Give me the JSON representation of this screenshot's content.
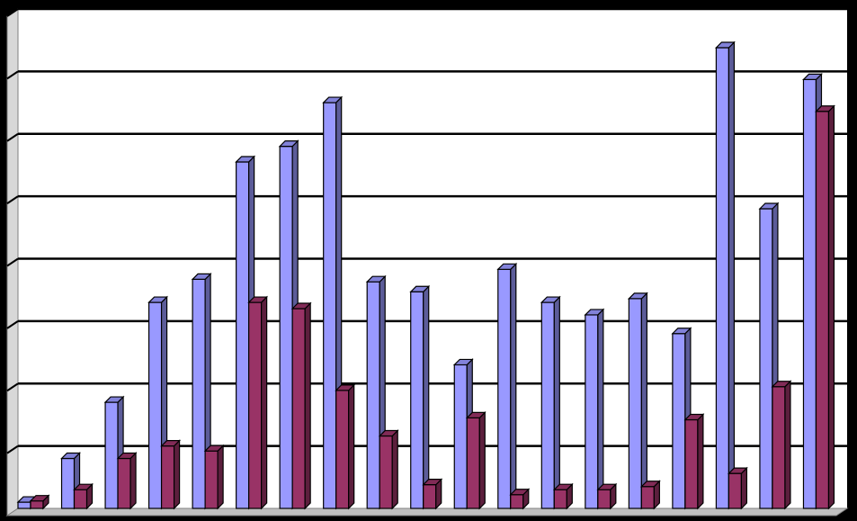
{
  "chart_data": {
    "type": "bar",
    "title": "",
    "xlabel": "",
    "ylabel": "",
    "ylim": [
      0,
      8
    ],
    "grid": true,
    "legend": "none",
    "categories": [
      "",
      "",
      "",
      "",
      "",
      "",
      "",
      "",
      "",
      "",
      "",
      "",
      "",
      "",
      "",
      "",
      "",
      "",
      ""
    ],
    "series": [
      {
        "color": "#9999ff",
        "values": [
          0.1,
          0.8,
          1.7,
          3.3,
          3.67,
          5.55,
          5.8,
          6.5,
          3.63,
          3.47,
          2.3,
          3.83,
          3.3,
          3.1,
          3.36,
          2.8,
          7.38,
          4.8,
          6.87
        ]
      },
      {
        "color": "#993366",
        "values": [
          0.12,
          0.3,
          0.8,
          1.0,
          0.92,
          3.3,
          3.2,
          1.89,
          1.16,
          0.38,
          1.45,
          0.22,
          0.3,
          0.3,
          0.35,
          1.42,
          0.56,
          1.95,
          6.36
        ]
      }
    ]
  }
}
